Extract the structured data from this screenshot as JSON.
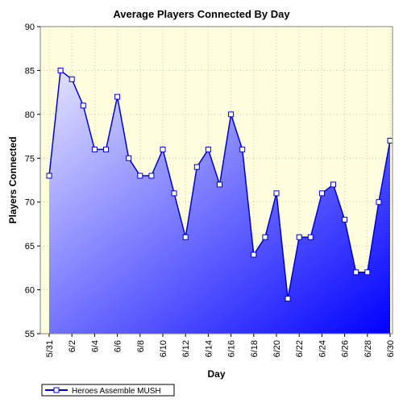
{
  "chart_data": {
    "type": "area",
    "title": "Average Players Connected By Day",
    "xlabel": "Day",
    "ylabel": "Players Connected",
    "ylim": [
      55,
      90
    ],
    "yticks": [
      55,
      60,
      65,
      70,
      75,
      80,
      85,
      90
    ],
    "grid": true,
    "legend_position": "bottom-left",
    "categories": [
      "5/31",
      "6/1",
      "6/2",
      "6/3",
      "6/4",
      "6/5",
      "6/6",
      "6/7",
      "6/8",
      "6/9",
      "6/10",
      "6/11",
      "6/12",
      "6/13",
      "6/14",
      "6/15",
      "6/16",
      "6/17",
      "6/18",
      "6/19",
      "6/20",
      "6/21",
      "6/22",
      "6/23",
      "6/24",
      "6/25",
      "6/26",
      "6/27",
      "6/28",
      "6/29",
      "6/30"
    ],
    "x_tick_labels": [
      "5/31",
      "6/2",
      "6/4",
      "6/6",
      "6/8",
      "6/10",
      "6/12",
      "6/14",
      "6/16",
      "6/18",
      "6/20",
      "6/22",
      "6/24",
      "6/26",
      "6/28",
      "6/30"
    ],
    "series": [
      {
        "name": "Heroes Assemble MUSH",
        "values": [
          73,
          85,
          84,
          81,
          76,
          76,
          82,
          75,
          73,
          73,
          76,
          71,
          66,
          74,
          76,
          72,
          80,
          76,
          64,
          66,
          71,
          59,
          66,
          66,
          71,
          72,
          68,
          62,
          62,
          70,
          77
        ]
      }
    ],
    "colors": {
      "line": "#0000cc",
      "plot_background": "#ffffe0",
      "area_light": "#e4e4ff",
      "area_dark": "#0000ff",
      "grid": "#c8c8a0",
      "marker_fill": "#ffffff"
    }
  }
}
